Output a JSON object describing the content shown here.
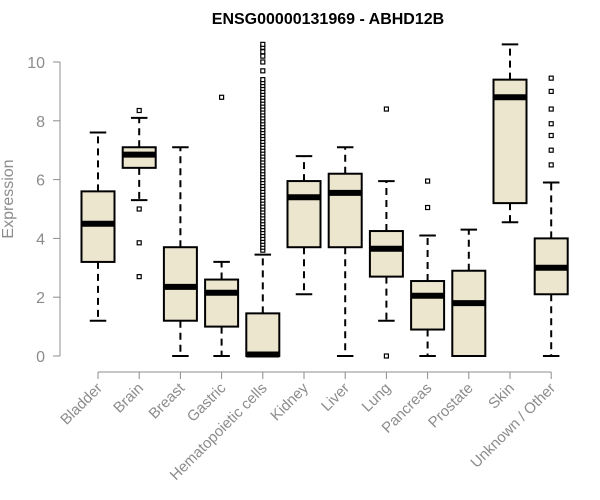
{
  "chart_data": {
    "type": "boxplot",
    "title": "ENSG00000131969 - ABHD12B",
    "ylabel": "Expression",
    "xlabel": "",
    "ylim": [
      0,
      10
    ],
    "yticks": [
      "0",
      "2",
      "4",
      "6",
      "8",
      "10"
    ],
    "box_color": "#ede6cf",
    "categories": [
      "Bladder",
      "Brain",
      "Breast",
      "Gastric",
      "Hematopoietic cells",
      "Kidney",
      "Liver",
      "Lung",
      "Pancreas",
      "Prostate",
      "Skin",
      "Unknown / Other"
    ],
    "boxes": [
      {
        "lo": 1.2,
        "q1": 3.2,
        "med": 4.5,
        "q3": 5.6,
        "hi": 7.6,
        "outliers": []
      },
      {
        "lo": 5.3,
        "q1": 6.4,
        "med": 6.85,
        "q3": 7.1,
        "hi": 8.1,
        "outliers": [
          8.35,
          5.0,
          3.85,
          2.7
        ]
      },
      {
        "lo": 0.0,
        "q1": 1.2,
        "med": 2.35,
        "q3": 3.7,
        "hi": 7.1,
        "outliers": []
      },
      {
        "lo": 0.0,
        "q1": 1.0,
        "med": 2.15,
        "q3": 2.6,
        "hi": 3.2,
        "outliers": [
          8.8
        ]
      },
      {
        "lo": 0.0,
        "q1": 0.0,
        "med": 0.05,
        "q3": 1.45,
        "hi": 3.45,
        "outliers": [
          3.6,
          3.7,
          3.8,
          3.9,
          4.0,
          4.1,
          4.2,
          4.3,
          4.4,
          4.5,
          4.6,
          4.7,
          4.8,
          4.9,
          5.0,
          5.1,
          5.2,
          5.3,
          5.4,
          5.5,
          5.6,
          5.7,
          5.8,
          5.9,
          6.0,
          6.1,
          6.2,
          6.3,
          6.4,
          6.5,
          6.6,
          6.7,
          6.8,
          6.9,
          7.0,
          7.1,
          7.2,
          7.3,
          7.4,
          7.5,
          7.6,
          7.7,
          7.8,
          7.9,
          8.0,
          8.1,
          8.2,
          8.3,
          8.4,
          8.5,
          8.6,
          8.7,
          8.8,
          8.9,
          9.0,
          9.1,
          9.2,
          9.3,
          9.4,
          9.7,
          10.0,
          10.2,
          10.35,
          10.5,
          10.6
        ]
      },
      {
        "lo": 2.1,
        "q1": 3.7,
        "med": 5.4,
        "q3": 5.95,
        "hi": 6.8,
        "outliers": []
      },
      {
        "lo": 0.0,
        "q1": 3.7,
        "med": 5.55,
        "q3": 6.2,
        "hi": 7.1,
        "outliers": []
      },
      {
        "lo": 1.2,
        "q1": 2.7,
        "med": 3.65,
        "q3": 4.25,
        "hi": 5.95,
        "outliers": [
          8.4,
          0.0
        ]
      },
      {
        "lo": 0.0,
        "q1": 0.9,
        "med": 2.05,
        "q3": 2.55,
        "hi": 4.1,
        "outliers": [
          5.95,
          5.05
        ]
      },
      {
        "lo": 0.0,
        "q1": 0.0,
        "med": 1.8,
        "q3": 2.9,
        "hi": 4.3,
        "outliers": []
      },
      {
        "lo": 4.55,
        "q1": 5.2,
        "med": 8.8,
        "q3": 9.4,
        "hi": 10.6,
        "outliers": []
      },
      {
        "lo": 0.0,
        "q1": 2.1,
        "med": 3.0,
        "q3": 4.0,
        "hi": 5.9,
        "outliers": [
          9.45,
          9.0,
          8.4,
          7.9,
          7.5,
          7.0,
          6.5
        ]
      }
    ]
  }
}
